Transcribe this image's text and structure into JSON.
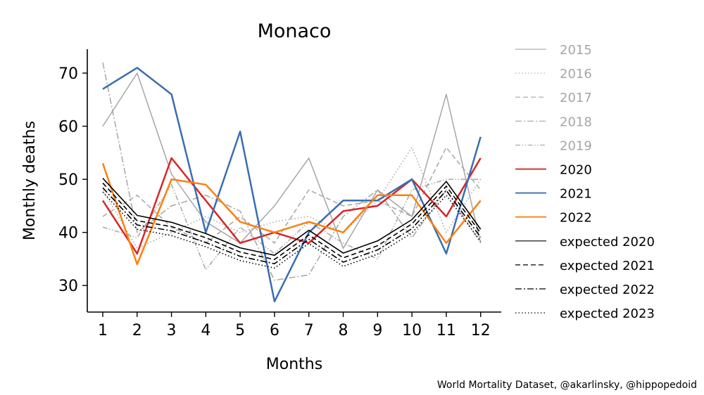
{
  "chart_data": {
    "type": "line",
    "title": "Monaco",
    "xlabel": "Months",
    "ylabel": "Monthly deaths",
    "x": [
      1,
      2,
      3,
      4,
      5,
      6,
      7,
      8,
      9,
      10,
      11,
      12
    ],
    "x_ticks": [
      "1",
      "2",
      "3",
      "4",
      "5",
      "6",
      "7",
      "8",
      "9",
      "10",
      "11",
      "12"
    ],
    "y_ticks": [
      "30",
      "40",
      "50",
      "60",
      "70"
    ],
    "ylim": [
      25,
      74.5
    ],
    "xlim": [
      0.55,
      12.6
    ],
    "grid": false,
    "legend_position": "right, outside plot",
    "series": [
      {
        "name": "2015",
        "color": "#a6a6a6",
        "dash": "solid",
        "width": 1.5,
        "values": [
          60,
          70,
          51,
          42,
          38,
          45,
          54,
          37,
          48,
          43,
          66,
          38
        ]
      },
      {
        "name": "2016",
        "color": "#a6a6a6",
        "dash": "dotted",
        "width": 1.5,
        "values": [
          48,
          37,
          40,
          43,
          40,
          42,
          43,
          40,
          46,
          56,
          40,
          50
        ]
      },
      {
        "name": "2017",
        "color": "#a6a6a6",
        "dash": "dashed",
        "width": 1.5,
        "values": [
          43,
          47,
          41,
          38,
          43,
          38,
          48,
          45,
          46,
          43,
          56,
          48
        ]
      },
      {
        "name": "2018",
        "color": "#a6a6a6",
        "dash": "dashdot",
        "width": 1.5,
        "values": [
          72,
          40,
          45,
          47,
          44,
          31,
          32,
          43,
          48,
          39,
          48,
          38
        ]
      },
      {
        "name": "2019",
        "color": "#a6a6a6",
        "dash": "dashdotdot",
        "width": 1.5,
        "values": [
          41,
          39,
          49,
          33,
          41,
          36,
          42,
          38,
          35,
          48,
          50,
          50
        ]
      },
      {
        "name": "2020",
        "color": "#d62728",
        "dash": "solid",
        "width": 2.5,
        "values": [
          46,
          36,
          54,
          46,
          38,
          40,
          38,
          44,
          45,
          50,
          43,
          54
        ]
      },
      {
        "name": "2021",
        "color": "#3a6eb0",
        "dash": "solid",
        "width": 2.5,
        "values": [
          67,
          71,
          66,
          40,
          59,
          27,
          40,
          46,
          46,
          50,
          36,
          58
        ]
      },
      {
        "name": "2022",
        "color": "#ff7f0e",
        "dash": "solid",
        "width": 2.5,
        "values": [
          53,
          34,
          50,
          49,
          42,
          40,
          42,
          40,
          47,
          47,
          38,
          46
        ]
      },
      {
        "name": "expected 2020",
        "color": "#000000",
        "dash": "solid",
        "width": 1.6,
        "values": [
          50.2,
          43.2,
          41.9,
          39.8,
          37.1,
          35.7,
          40.4,
          36.1,
          38.4,
          42.4,
          49.6,
          40.6
        ]
      },
      {
        "name": "expected 2021",
        "color": "#000000",
        "dash": "dashed",
        "width": 1.6,
        "values": [
          49.3,
          42.2,
          41.1,
          39.0,
          36.3,
          34.9,
          39.5,
          35.2,
          37.5,
          41.6,
          48.7,
          39.9
        ]
      },
      {
        "name": "expected 2022",
        "color": "#000000",
        "dash": "dashdot",
        "width": 1.6,
        "values": [
          48.4,
          41.4,
          40.3,
          38.1,
          35.5,
          34.1,
          38.7,
          34.4,
          36.7,
          40.7,
          47.9,
          39.1
        ]
      },
      {
        "name": "expected 2023",
        "color": "#000000",
        "dash": "dotted",
        "width": 1.6,
        "values": [
          47.6,
          40.6,
          39.4,
          37.3,
          34.7,
          33.3,
          37.9,
          33.6,
          35.9,
          39.9,
          47.0,
          38.3
        ]
      }
    ],
    "legend_label_colors": {
      "past": "#a6a6a6",
      "current": "#000000"
    }
  },
  "caption": "World Mortality Dataset, @akarlinsky, @hippopedoid"
}
